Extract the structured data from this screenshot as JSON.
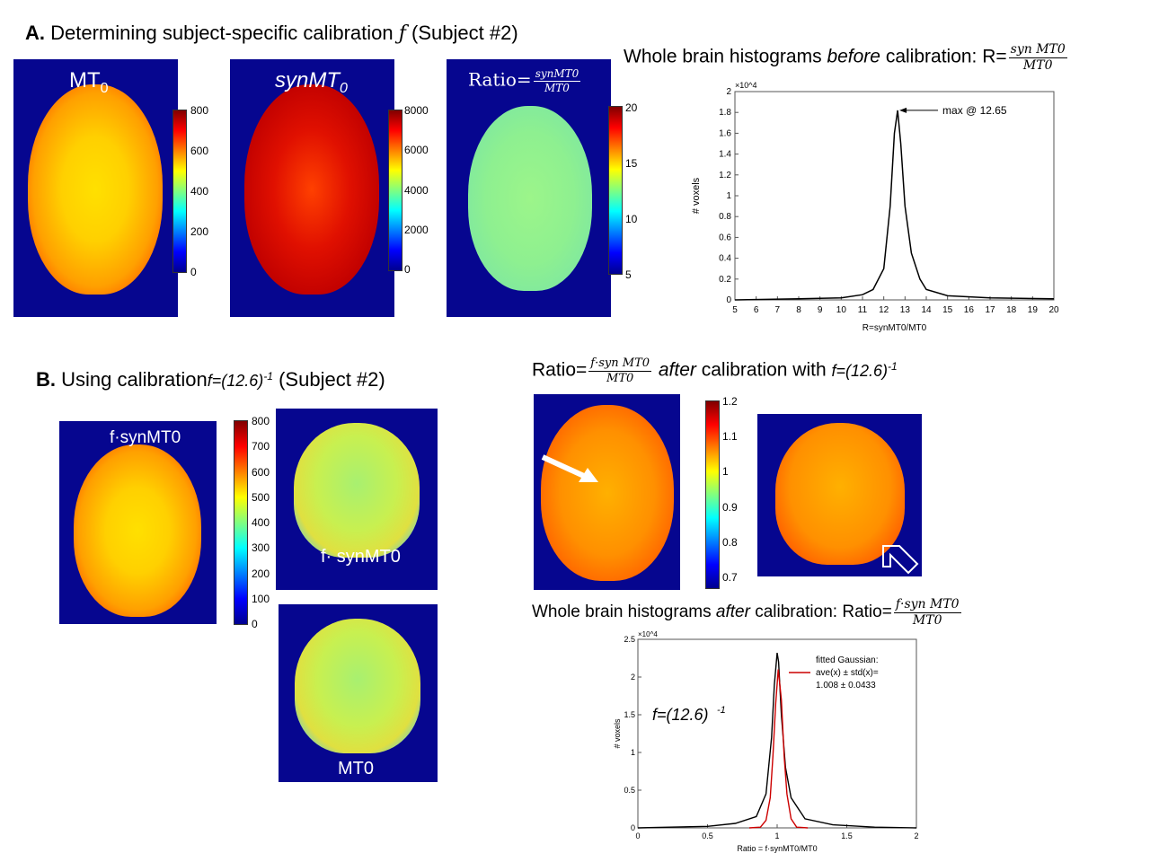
{
  "sectionA": {
    "label": "A.",
    "title_pre": "Determining subject-specific calibration",
    "f_symbol": "ƒ",
    "subject": "(Subject #2)",
    "panels": {
      "mt0": {
        "label_base": "MT",
        "label_sub": "0"
      },
      "synmt0": {
        "label_base": "synMT",
        "label_sub": "0"
      },
      "ratio": {
        "label_pre": "Ratio=",
        "num": "synMT0",
        "den": "MT0"
      }
    },
    "colorbars": {
      "mt0": [
        "800",
        "600",
        "400",
        "200",
        "0"
      ],
      "synmt0": [
        "8000",
        "6000",
        "4000",
        "2000",
        "0"
      ],
      "ratio": [
        "20",
        "15",
        "10",
        "5"
      ]
    },
    "hist_title_pre": "Whole brain histograms",
    "hist_title_emph": "before",
    "hist_title_post": "calibration: R=",
    "hist_frac_num": "syn MT0",
    "hist_frac_den": "MT0"
  },
  "sectionB": {
    "label": "B.",
    "title_pre": "Using calibration",
    "f_expr": "f=(12.6)",
    "f_exp": "-1",
    "subject": "(Subject #2)",
    "axial_label": "f·synMT0",
    "coronal1_label": "f· synMT0",
    "coronal2_label": "MT0",
    "colorbar": [
      "800",
      "700",
      "600",
      "500",
      "400",
      "300",
      "200",
      "100",
      "0"
    ],
    "ratio_title_pre": "Ratio=",
    "ratio_frac_num": "f·syn MT0",
    "ratio_frac_den": "MT0",
    "ratio_title_emph": "after",
    "ratio_title_post": "calibration with",
    "ratio_f_expr": "f=(12.6)",
    "ratio_f_exp": "-1",
    "ratio_colorbar": [
      "1.2",
      "1.1",
      "1",
      "0.9",
      "0.8",
      "0.7"
    ],
    "hist_title_pre": "Whole brain histograms",
    "hist_title_emph": "after",
    "hist_title_post": "calibration: Ratio=",
    "hist_frac_num": "f·syn MT0",
    "hist_frac_den": "MT0"
  },
  "chart_data": [
    {
      "type": "line",
      "xlabel": "R=synMT0/MT0",
      "ylabel": "# voxels",
      "y_exponent": "×10^4",
      "xlim": [
        5,
        20
      ],
      "ylim": [
        0,
        2
      ],
      "x_ticks": [
        "5",
        "6",
        "7",
        "8",
        "9",
        "10",
        "11",
        "12",
        "13",
        "14",
        "15",
        "16",
        "17",
        "18",
        "19",
        "20"
      ],
      "y_ticks": [
        "0",
        "0.2",
        "0.4",
        "0.6",
        "0.8",
        "1",
        "1.2",
        "1.4",
        "1.6",
        "1.8",
        "2"
      ],
      "annotation": "max @ 12.65",
      "series": [
        {
          "x": [
            5,
            8,
            10,
            11,
            11.5,
            12,
            12.3,
            12.5,
            12.65,
            12.8,
            13,
            13.3,
            13.7,
            14,
            15,
            17,
            20
          ],
          "y": [
            0.0,
            0.01,
            0.02,
            0.05,
            0.1,
            0.3,
            0.9,
            1.6,
            1.82,
            1.5,
            0.9,
            0.45,
            0.2,
            0.1,
            0.04,
            0.02,
            0.01
          ]
        }
      ]
    },
    {
      "type": "line",
      "xlabel": "Ratio = f·synMT0/MT0",
      "ylabel": "# voxels",
      "y_exponent": "×10^4",
      "xlim": [
        0,
        2
      ],
      "ylim": [
        0,
        2.5
      ],
      "x_ticks": [
        "0",
        "0.5",
        "1",
        "1.5",
        "2"
      ],
      "y_ticks": [
        "0",
        "0.5",
        "1",
        "1.5",
        "2",
        "2.5"
      ],
      "legend_title": "fitted Gaussian:",
      "legend_line1": "ave(x) ± std(x)=",
      "legend_line2": "1.008 ± 0.0433",
      "inline_label": "f=(12.6)",
      "inline_label_exp": "-1",
      "series": [
        {
          "color": "#000000",
          "x": [
            0,
            0.5,
            0.7,
            0.85,
            0.92,
            0.96,
            0.98,
            1.0,
            1.01,
            1.03,
            1.06,
            1.1,
            1.2,
            1.4,
            1.7,
            2.0
          ],
          "y": [
            0,
            0.02,
            0.06,
            0.15,
            0.45,
            1.2,
            1.9,
            2.32,
            2.2,
            1.5,
            0.8,
            0.4,
            0.12,
            0.04,
            0.01,
            0
          ]
        },
        {
          "color": "#cc0000",
          "x": [
            0.8,
            0.88,
            0.92,
            0.95,
            0.97,
            0.99,
            1.008,
            1.03,
            1.05,
            1.07,
            1.1,
            1.14,
            1.22
          ],
          "y": [
            0,
            0.01,
            0.1,
            0.4,
            0.95,
            1.65,
            2.1,
            1.7,
            0.95,
            0.45,
            0.12,
            0.01,
            0
          ]
        }
      ]
    }
  ]
}
